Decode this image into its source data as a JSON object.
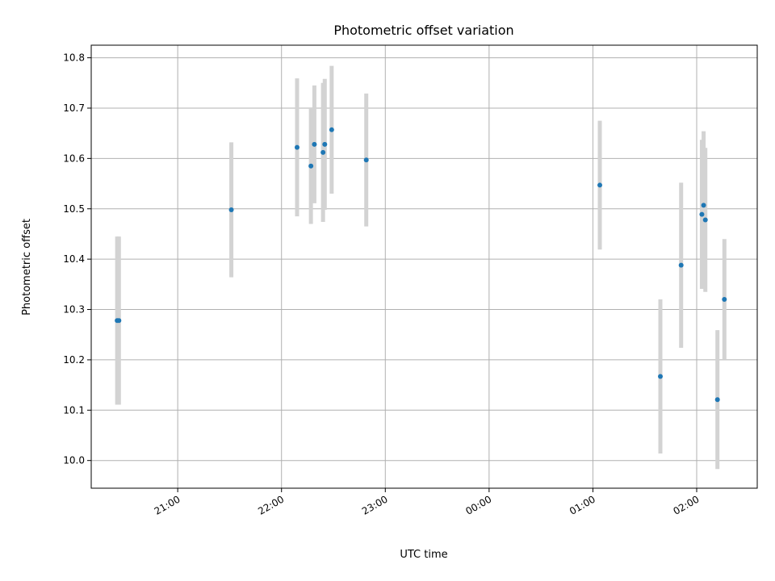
{
  "chart_data": {
    "type": "scatter",
    "title": "Photometric offset variation",
    "xlabel": "UTC time",
    "ylabel": "Photometric offset",
    "xlim": [
      "20:10",
      "02:35"
    ],
    "ylim": [
      9.945,
      10.825
    ],
    "x_ticks": [
      "21:00",
      "22:00",
      "23:00",
      "00:00",
      "01:00",
      "02:00"
    ],
    "y_ticks": [
      10.0,
      10.1,
      10.2,
      10.3,
      10.4,
      10.5,
      10.6,
      10.7,
      10.8
    ],
    "y_tick_labels": [
      "10.0",
      "10.1",
      "10.2",
      "10.3",
      "10.4",
      "10.5",
      "10.6",
      "10.7",
      "10.8"
    ],
    "grid": true,
    "colors": {
      "point": "#1f77b4",
      "errorbar": "#d3d3d3",
      "grid": "#b0b0b0"
    },
    "points": [
      {
        "x": "20:25",
        "y": 10.278,
        "yerr": 0.167
      },
      {
        "x": "20:26",
        "y": 10.278,
        "yerr": 0.167
      },
      {
        "x": "21:31",
        "y": 10.498,
        "yerr": 0.134
      },
      {
        "x": "22:09",
        "y": 10.622,
        "yerr": 0.137
      },
      {
        "x": "22:17",
        "y": 10.585,
        "yerr": 0.115
      },
      {
        "x": "22:19",
        "y": 10.628,
        "yerr": 0.117
      },
      {
        "x": "22:24",
        "y": 10.612,
        "yerr": 0.138
      },
      {
        "x": "22:25",
        "y": 10.628,
        "yerr": 0.13
      },
      {
        "x": "22:29",
        "y": 10.657,
        "yerr": 0.127
      },
      {
        "x": "22:49",
        "y": 10.597,
        "yerr": 0.132
      },
      {
        "x": "01:04",
        "y": 10.547,
        "yerr": 0.128
      },
      {
        "x": "01:39",
        "y": 10.167,
        "yerr": 0.153
      },
      {
        "x": "01:51",
        "y": 10.388,
        "yerr": 0.164
      },
      {
        "x": "02:03",
        "y": 10.489,
        "yerr": 0.148
      },
      {
        "x": "02:04",
        "y": 10.507,
        "yerr": 0.147
      },
      {
        "x": "02:05",
        "y": 10.478,
        "yerr": 0.143
      },
      {
        "x": "02:12",
        "y": 10.121,
        "yerr": 0.138
      },
      {
        "x": "02:16",
        "y": 10.32,
        "yerr": 0.12
      }
    ]
  }
}
